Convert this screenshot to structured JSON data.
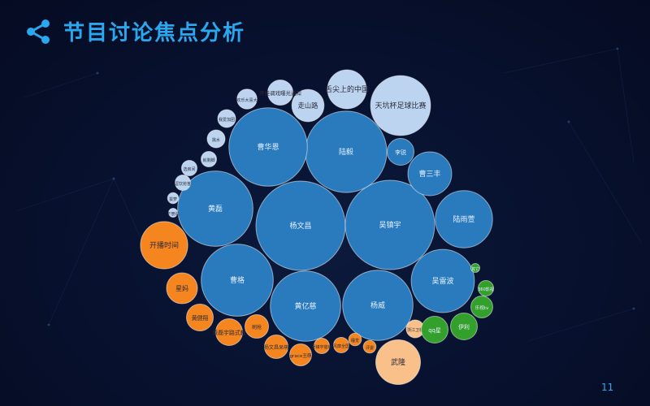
{
  "header": {
    "title": "节目讨论焦点分析",
    "icon": "share-nodes-icon"
  },
  "page_number": "11",
  "colors": {
    "large": "#2a7bbd",
    "small": "#bcd4ef",
    "orange": "#f5851f",
    "peach": "#f9c08a",
    "green": "#33a02c",
    "title": "#2aa8ef"
  },
  "chart_data": {
    "type": "bubble",
    "title": "",
    "bubbles": [
      {
        "label": "杨文昌",
        "value": 100,
        "group": "large"
      },
      {
        "label": "吴镇宇",
        "value": 100,
        "group": "large"
      },
      {
        "label": "陆毅",
        "value": 83,
        "group": "large"
      },
      {
        "label": "曹华恩",
        "value": 77,
        "group": "large"
      },
      {
        "label": "黄磊",
        "value": 71,
        "group": "large"
      },
      {
        "label": "曹格",
        "value": 65,
        "group": "large"
      },
      {
        "label": "黄亿慈",
        "value": 62,
        "group": "large"
      },
      {
        "label": "杨威",
        "value": 62,
        "group": "large"
      },
      {
        "label": "吴雷波",
        "value": 50,
        "group": "large"
      },
      {
        "label": "陆雨萱",
        "value": 41,
        "group": "large"
      },
      {
        "label": "曹三丰",
        "value": 24,
        "group": "large"
      },
      {
        "label": "李锐",
        "value": 9,
        "group": "large"
      },
      {
        "label": "天坑杯足球比赛",
        "value": 45,
        "group": "small"
      },
      {
        "label": "舌尖上的中国",
        "value": 19,
        "group": "small"
      },
      {
        "label": "走山路",
        "value": 13,
        "group": "small"
      },
      {
        "label": "开挂调戏曝光通知",
        "value": 8,
        "group": "small"
      },
      {
        "label": "欢乐大喜大",
        "value": 5,
        "group": "small"
      },
      {
        "label": "我爱加团",
        "value": 4,
        "group": "small"
      },
      {
        "label": "挑水",
        "value": 4,
        "group": "small"
      },
      {
        "label": "就剩脚",
        "value": 3,
        "group": "small"
      },
      {
        "label": "选房间",
        "value": 3,
        "group": "small"
      },
      {
        "label": "逗饮抢答",
        "value": 3,
        "group": "small"
      },
      {
        "label": "拔萝",
        "value": 1.5,
        "group": "small"
      },
      {
        "label": "下册说",
        "value": 1,
        "group": "small"
      },
      {
        "label": "开播时间",
        "value": 28,
        "group": "orange"
      },
      {
        "label": "星妈",
        "value": 12,
        "group": "orange"
      },
      {
        "label": "黄健翔",
        "value": 9,
        "group": "orange"
      },
      {
        "label": "黄磊宇路式教",
        "value": 9,
        "group": "orange"
      },
      {
        "label": "刷抢",
        "value": 7,
        "group": "orange"
      },
      {
        "label": "杨文昌呆萌",
        "value": 7,
        "group": "orange"
      },
      {
        "label": "曹格素质好",
        "value": 5,
        "group": "orange"
      },
      {
        "label": "grace丑萌",
        "value": 6,
        "group": "orange"
      },
      {
        "label": "吴镇宇爸爸",
        "value": 3,
        "group": "orange"
      },
      {
        "label": "风靡全国",
        "value": 3,
        "group": "orange"
      },
      {
        "label": "睡觉",
        "value": 2,
        "group": "orange"
      },
      {
        "label": "评委",
        "value": 2,
        "group": "orange"
      },
      {
        "label": "武隆",
        "value": 25,
        "group": "peach"
      },
      {
        "label": "浙江卫视",
        "value": 4,
        "group": "peach"
      },
      {
        "label": "qq星",
        "value": 9,
        "group": "green"
      },
      {
        "label": "伊利",
        "value": 9,
        "group": "green"
      },
      {
        "label": "乐视tv",
        "value": 6,
        "group": "green"
      },
      {
        "label": "360影视",
        "value": 3,
        "group": "green"
      },
      {
        "label": "其它",
        "value": 1,
        "group": "green"
      }
    ]
  }
}
